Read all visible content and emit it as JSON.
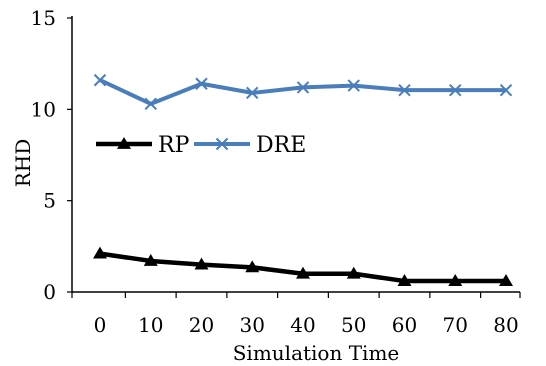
{
  "chart_data": {
    "type": "line",
    "x": [
      0,
      10,
      20,
      30,
      40,
      50,
      60,
      70,
      80
    ],
    "x_tick_labels": [
      "0",
      "10",
      "20",
      "30",
      "40",
      "50",
      "60",
      "70",
      "80"
    ],
    "y_tick_labels": [
      "0",
      "5",
      "10",
      "15"
    ],
    "xlabel": "Simulation Time",
    "ylabel": "RHD",
    "ylim": [
      0,
      15
    ],
    "grid": false,
    "legend_position": "left, mid-plot",
    "series": [
      {
        "name": "RP",
        "marker": "triangle",
        "color": "#000000",
        "values": [
          2.1,
          1.7,
          1.5,
          1.35,
          1.0,
          1.0,
          0.6,
          0.6,
          0.6
        ]
      },
      {
        "name": "DRE",
        "marker": "x",
        "color": "#4a7ebb",
        "values": [
          11.6,
          10.3,
          11.4,
          10.9,
          11.2,
          11.3,
          11.05,
          11.05,
          11.05
        ]
      }
    ]
  }
}
